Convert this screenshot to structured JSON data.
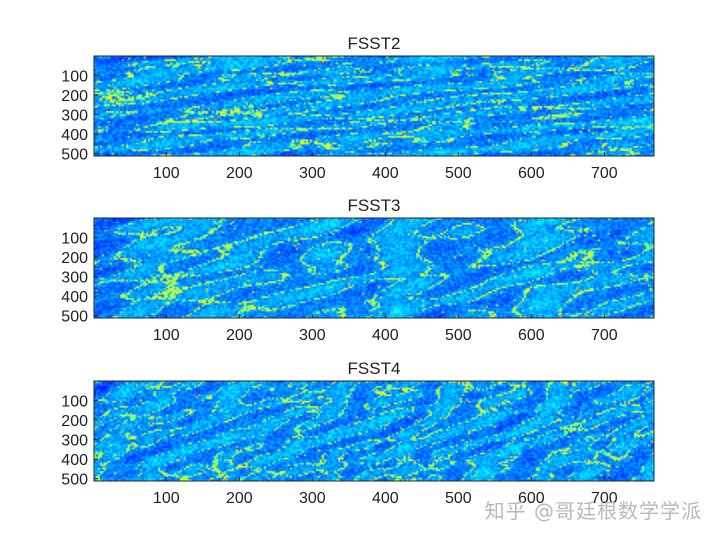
{
  "watermark": "知乎 @哥廷根数学学派",
  "colormap": "jet",
  "chart_data": [
    {
      "type": "heatmap",
      "title": "FSST2",
      "xlabel": "",
      "ylabel": "",
      "xlim": [
        1,
        768
      ],
      "ylim": [
        1,
        512
      ],
      "x_ticks": [
        100,
        200,
        300,
        400,
        500,
        600,
        700
      ],
      "y_ticks": [
        100,
        200,
        300,
        400,
        500
      ],
      "y_reversed": true,
      "grid": false,
      "texture": "horizontal-streaks",
      "seed": 11
    },
    {
      "type": "heatmap",
      "title": "FSST3",
      "xlabel": "",
      "ylabel": "",
      "xlim": [
        1,
        768
      ],
      "ylim": [
        1,
        512
      ],
      "x_ticks": [
        100,
        200,
        300,
        400,
        500,
        600,
        700
      ],
      "y_ticks": [
        100,
        200,
        300,
        400,
        500
      ],
      "y_reversed": true,
      "grid": false,
      "texture": "cellular",
      "seed": 23
    },
    {
      "type": "heatmap",
      "title": "FSST4",
      "xlabel": "",
      "ylabel": "",
      "xlim": [
        1,
        768
      ],
      "ylim": [
        1,
        512
      ],
      "x_ticks": [
        100,
        200,
        300,
        400,
        500,
        600,
        700
      ],
      "y_ticks": [
        100,
        200,
        300,
        400,
        500
      ],
      "y_reversed": true,
      "grid": false,
      "texture": "fine-mesh",
      "seed": 37
    }
  ]
}
